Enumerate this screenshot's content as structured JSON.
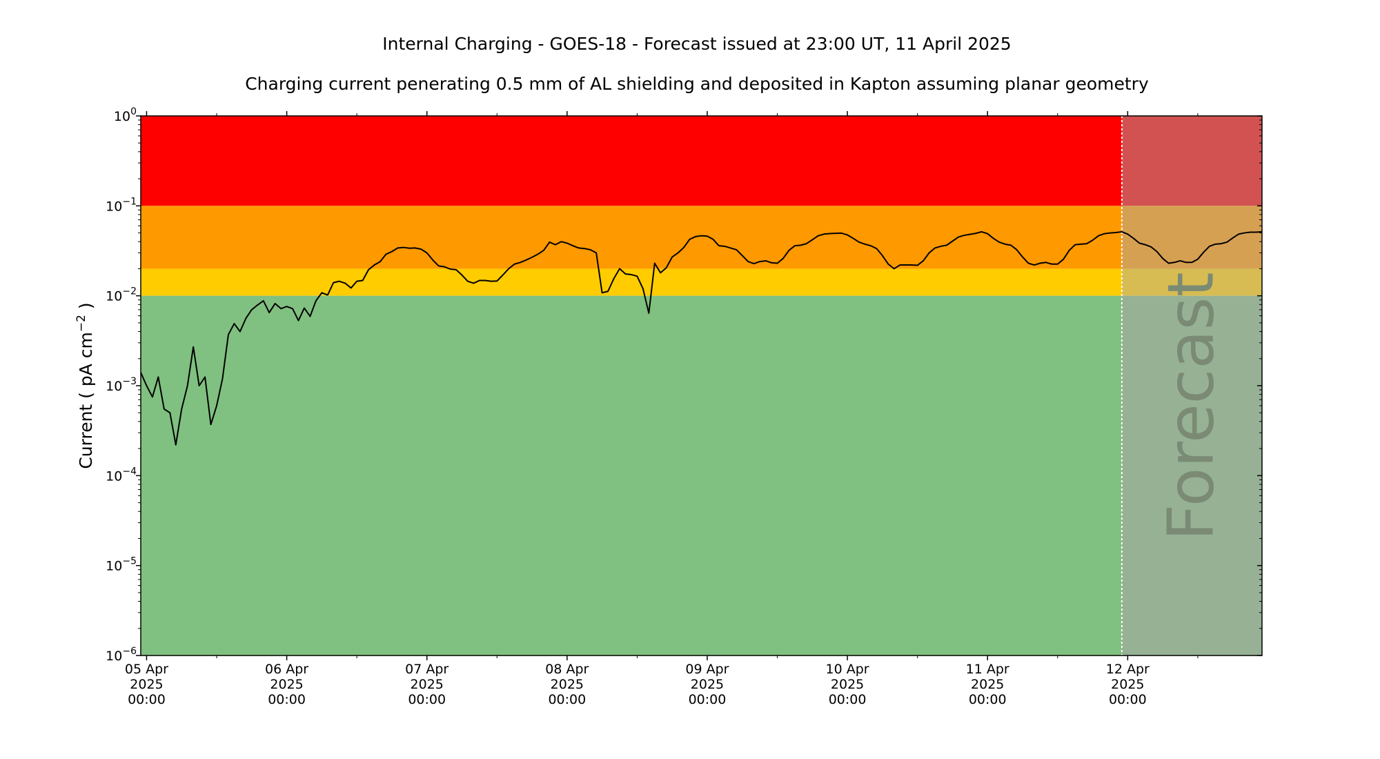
{
  "chart_data": {
    "type": "line",
    "title": "Internal Charging - GOES-18 - Forecast issued at 23:00 UT, 11 April 2025",
    "subtitle": "Charging current penerating 0.5 mm of AL shielding and deposited in Kapton assuming planar geometry",
    "ylabel": {
      "prefix": "Current ( pA cm",
      "exp": "−2",
      "suffix": " )"
    },
    "xlabel": "",
    "yscale": "log",
    "ylim": [
      1e-06,
      1
    ],
    "xlim": [
      "2025-04-04T23:00",
      "2025-04-12T23:00"
    ],
    "y_ticks": [
      {
        "value": 1e-06,
        "base": "10",
        "exp": "−6"
      },
      {
        "value": 1e-05,
        "base": "10",
        "exp": "−5"
      },
      {
        "value": 0.0001,
        "base": "10",
        "exp": "−4"
      },
      {
        "value": 0.001,
        "base": "10",
        "exp": "−3"
      },
      {
        "value": 0.01,
        "base": "10",
        "exp": "−2"
      },
      {
        "value": 0.1,
        "base": "10",
        "exp": "−1"
      },
      {
        "value": 1,
        "base": "10",
        "exp": "0"
      }
    ],
    "x_ticks": [
      {
        "time": "2025-04-05T00:00",
        "lines": [
          "05 Apr",
          "2025",
          "00:00"
        ]
      },
      {
        "time": "2025-04-06T00:00",
        "lines": [
          "06 Apr",
          "2025",
          "00:00"
        ]
      },
      {
        "time": "2025-04-07T00:00",
        "lines": [
          "07 Apr",
          "2025",
          "00:00"
        ]
      },
      {
        "time": "2025-04-08T00:00",
        "lines": [
          "08 Apr",
          "2025",
          "00:00"
        ]
      },
      {
        "time": "2025-04-09T00:00",
        "lines": [
          "09 Apr",
          "2025",
          "00:00"
        ]
      },
      {
        "time": "2025-04-10T00:00",
        "lines": [
          "10 Apr",
          "2025",
          "00:00"
        ]
      },
      {
        "time": "2025-04-11T00:00",
        "lines": [
          "11 Apr",
          "2025",
          "00:00"
        ]
      },
      {
        "time": "2025-04-12T00:00",
        "lines": [
          "12 Apr",
          "2025",
          "00:00"
        ]
      }
    ],
    "x_minor_ticks": [
      "2025-04-05T12:00",
      "2025-04-06T12:00",
      "2025-04-07T12:00",
      "2025-04-08T12:00",
      "2025-04-09T12:00",
      "2025-04-10T12:00",
      "2025-04-11T12:00",
      "2025-04-12T12:00"
    ],
    "bands": [
      {
        "from": 0.1,
        "to": 1,
        "color": "#ff0000",
        "forecast_color": "#d25252"
      },
      {
        "from": 0.02,
        "to": 0.1,
        "color": "#ff9900",
        "forecast_color": "#d6a052"
      },
      {
        "from": 0.01,
        "to": 0.02,
        "color": "#ffcc00",
        "forecast_color": "#d6bc52"
      },
      {
        "from": 1e-06,
        "to": 0.01,
        "color": "#80c080",
        "forecast_color": "#96b194"
      }
    ],
    "forecast": {
      "start": "2025-04-11T23:00",
      "label": "Forecast",
      "line_color": "#ffffff"
    },
    "series": [
      {
        "color": "#000000",
        "points": [
          [
            "2025-04-04T23:00",
            0.0014
          ],
          [
            "2025-04-05T00:00",
            0.001
          ],
          [
            "2025-04-05T01:00",
            0.00075
          ],
          [
            "2025-04-05T02:00",
            0.00125
          ],
          [
            "2025-04-05T03:00",
            0.00055
          ],
          [
            "2025-04-05T04:00",
            0.0005
          ],
          [
            "2025-04-05T05:00",
            0.00022
          ],
          [
            "2025-04-05T06:00",
            0.00055
          ],
          [
            "2025-04-05T07:00",
            0.001
          ],
          [
            "2025-04-05T08:00",
            0.0027
          ],
          [
            "2025-04-05T09:00",
            0.001
          ],
          [
            "2025-04-05T10:00",
            0.00125
          ],
          [
            "2025-04-05T11:00",
            0.00037
          ],
          [
            "2025-04-05T12:00",
            0.0006
          ],
          [
            "2025-04-05T13:00",
            0.0012
          ],
          [
            "2025-04-05T14:00",
            0.0037
          ],
          [
            "2025-04-05T15:00",
            0.0049
          ],
          [
            "2025-04-05T16:00",
            0.004
          ],
          [
            "2025-04-05T17:00",
            0.0056
          ],
          [
            "2025-04-05T18:00",
            0.007
          ],
          [
            "2025-04-05T19:00",
            0.0079
          ],
          [
            "2025-04-05T20:00",
            0.0088
          ],
          [
            "2025-04-05T21:00",
            0.0065
          ],
          [
            "2025-04-05T22:00",
            0.0082
          ],
          [
            "2025-04-05T23:00",
            0.0072
          ],
          [
            "2025-04-06T00:00",
            0.0076
          ],
          [
            "2025-04-06T01:00",
            0.0072
          ],
          [
            "2025-04-06T02:00",
            0.0053
          ],
          [
            "2025-04-06T03:00",
            0.0073
          ],
          [
            "2025-04-06T04:00",
            0.0059
          ],
          [
            "2025-04-06T05:00",
            0.0088
          ],
          [
            "2025-04-06T06:00",
            0.0108
          ],
          [
            "2025-04-06T07:00",
            0.0102
          ],
          [
            "2025-04-06T08:00",
            0.014
          ],
          [
            "2025-04-06T09:00",
            0.0145
          ],
          [
            "2025-04-06T10:00",
            0.0138
          ],
          [
            "2025-04-06T11:00",
            0.0122
          ],
          [
            "2025-04-06T12:00",
            0.0145
          ],
          [
            "2025-04-06T13:00",
            0.0148
          ],
          [
            "2025-04-06T14:00",
            0.0195
          ],
          [
            "2025-04-06T15:00",
            0.022
          ],
          [
            "2025-04-06T16:00",
            0.024
          ],
          [
            "2025-04-06T17:00",
            0.029
          ],
          [
            "2025-04-06T18:00",
            0.031
          ],
          [
            "2025-04-06T19:00",
            0.034
          ],
          [
            "2025-04-06T20:00",
            0.0345
          ],
          [
            "2025-04-06T21:00",
            0.0338
          ],
          [
            "2025-04-06T22:00",
            0.034
          ],
          [
            "2025-04-06T23:00",
            0.033
          ],
          [
            "2025-04-07T00:00",
            0.03
          ],
          [
            "2025-04-07T01:00",
            0.025
          ],
          [
            "2025-04-07T02:00",
            0.0215
          ],
          [
            "2025-04-07T03:00",
            0.021
          ],
          [
            "2025-04-07T04:00",
            0.0198
          ],
          [
            "2025-04-07T05:00",
            0.0195
          ],
          [
            "2025-04-07T06:00",
            0.017
          ],
          [
            "2025-04-07T07:00",
            0.0145
          ],
          [
            "2025-04-07T08:00",
            0.0138
          ],
          [
            "2025-04-07T09:00",
            0.0148
          ],
          [
            "2025-04-07T10:00",
            0.0148
          ],
          [
            "2025-04-07T11:00",
            0.0145
          ],
          [
            "2025-04-07T12:00",
            0.0146
          ],
          [
            "2025-04-07T13:00",
            0.017
          ],
          [
            "2025-04-07T14:00",
            0.02
          ],
          [
            "2025-04-07T15:00",
            0.0225
          ],
          [
            "2025-04-07T16:00",
            0.0235
          ],
          [
            "2025-04-07T17:00",
            0.025
          ],
          [
            "2025-04-07T18:00",
            0.0268
          ],
          [
            "2025-04-07T19:00",
            0.029
          ],
          [
            "2025-04-07T20:00",
            0.032
          ],
          [
            "2025-04-07T21:00",
            0.0395
          ],
          [
            "2025-04-07T22:00",
            0.037
          ],
          [
            "2025-04-07T23:00",
            0.04
          ],
          [
            "2025-04-08T00:00",
            0.0385
          ],
          [
            "2025-04-08T01:00",
            0.036
          ],
          [
            "2025-04-08T02:00",
            0.034
          ],
          [
            "2025-04-08T03:00",
            0.0335
          ],
          [
            "2025-04-08T04:00",
            0.0325
          ],
          [
            "2025-04-08T05:00",
            0.03
          ],
          [
            "2025-04-08T06:00",
            0.0108
          ],
          [
            "2025-04-08T07:00",
            0.0112
          ],
          [
            "2025-04-08T08:00",
            0.0155
          ],
          [
            "2025-04-08T09:00",
            0.02
          ],
          [
            "2025-04-08T10:00",
            0.0175
          ],
          [
            "2025-04-08T11:00",
            0.0172
          ],
          [
            "2025-04-08T12:00",
            0.0165
          ],
          [
            "2025-04-08T13:00",
            0.012
          ],
          [
            "2025-04-08T14:00",
            0.0064
          ],
          [
            "2025-04-08T15:00",
            0.023
          ],
          [
            "2025-04-08T16:00",
            0.018
          ],
          [
            "2025-04-08T17:00",
            0.0205
          ],
          [
            "2025-04-08T18:00",
            0.027
          ],
          [
            "2025-04-08T19:00",
            0.03
          ],
          [
            "2025-04-08T20:00",
            0.0345
          ],
          [
            "2025-04-08T21:00",
            0.0425
          ],
          [
            "2025-04-08T22:00",
            0.0455
          ],
          [
            "2025-04-08T23:00",
            0.0465
          ],
          [
            "2025-04-09T00:00",
            0.046
          ],
          [
            "2025-04-09T01:00",
            0.0425
          ],
          [
            "2025-04-09T02:00",
            0.036
          ],
          [
            "2025-04-09T03:00",
            0.0355
          ],
          [
            "2025-04-09T04:00",
            0.034
          ],
          [
            "2025-04-09T05:00",
            0.0325
          ],
          [
            "2025-04-09T06:00",
            0.028
          ],
          [
            "2025-04-09T07:00",
            0.024
          ],
          [
            "2025-04-09T08:00",
            0.0228
          ],
          [
            "2025-04-09T09:00",
            0.024
          ],
          [
            "2025-04-09T10:00",
            0.0245
          ],
          [
            "2025-04-09T11:00",
            0.0233
          ],
          [
            "2025-04-09T12:00",
            0.023
          ],
          [
            "2025-04-09T13:00",
            0.026
          ],
          [
            "2025-04-09T14:00",
            0.032
          ],
          [
            "2025-04-09T15:00",
            0.036
          ],
          [
            "2025-04-09T16:00",
            0.0365
          ],
          [
            "2025-04-09T17:00",
            0.038
          ],
          [
            "2025-04-09T18:00",
            0.042
          ],
          [
            "2025-04-09T19:00",
            0.0465
          ],
          [
            "2025-04-09T20:00",
            0.0485
          ],
          [
            "2025-04-09T21:00",
            0.0492
          ],
          [
            "2025-04-09T22:00",
            0.0495
          ],
          [
            "2025-04-09T23:00",
            0.0497
          ],
          [
            "2025-04-10T00:00",
            0.0475
          ],
          [
            "2025-04-10T01:00",
            0.0435
          ],
          [
            "2025-04-10T02:00",
            0.0395
          ],
          [
            "2025-04-10T03:00",
            0.0375
          ],
          [
            "2025-04-10T04:00",
            0.036
          ],
          [
            "2025-04-10T05:00",
            0.0335
          ],
          [
            "2025-04-10T06:00",
            0.028
          ],
          [
            "2025-04-10T07:00",
            0.0225
          ],
          [
            "2025-04-10T08:00",
            0.02
          ],
          [
            "2025-04-10T09:00",
            0.022
          ],
          [
            "2025-04-10T10:00",
            0.022
          ],
          [
            "2025-04-10T11:00",
            0.022
          ],
          [
            "2025-04-10T12:00",
            0.0218
          ],
          [
            "2025-04-10T13:00",
            0.0245
          ],
          [
            "2025-04-10T14:00",
            0.03
          ],
          [
            "2025-04-10T15:00",
            0.034
          ],
          [
            "2025-04-10T16:00",
            0.0355
          ],
          [
            "2025-04-10T17:00",
            0.0365
          ],
          [
            "2025-04-10T18:00",
            0.0405
          ],
          [
            "2025-04-10T19:00",
            0.045
          ],
          [
            "2025-04-10T20:00",
            0.047
          ],
          [
            "2025-04-10T21:00",
            0.0482
          ],
          [
            "2025-04-10T22:00",
            0.0495
          ],
          [
            "2025-04-10T23:00",
            0.0515
          ],
          [
            "2025-04-11T00:00",
            0.049
          ],
          [
            "2025-04-11T01:00",
            0.0435
          ],
          [
            "2025-04-11T02:00",
            0.0395
          ],
          [
            "2025-04-11T03:00",
            0.0375
          ],
          [
            "2025-04-11T04:00",
            0.0365
          ],
          [
            "2025-04-11T05:00",
            0.0325
          ],
          [
            "2025-04-11T06:00",
            0.027
          ],
          [
            "2025-04-11T07:00",
            0.023
          ],
          [
            "2025-04-11T08:00",
            0.022
          ],
          [
            "2025-04-11T09:00",
            0.023
          ],
          [
            "2025-04-11T10:00",
            0.0235
          ],
          [
            "2025-04-11T11:00",
            0.0225
          ],
          [
            "2025-04-11T12:00",
            0.0225
          ],
          [
            "2025-04-11T13:00",
            0.0255
          ],
          [
            "2025-04-11T14:00",
            0.032
          ],
          [
            "2025-04-11T15:00",
            0.037
          ],
          [
            "2025-04-11T16:00",
            0.0375
          ],
          [
            "2025-04-11T17:00",
            0.038
          ],
          [
            "2025-04-11T18:00",
            0.0415
          ],
          [
            "2025-04-11T19:00",
            0.0465
          ],
          [
            "2025-04-11T20:00",
            0.049
          ],
          [
            "2025-04-11T21:00",
            0.05
          ],
          [
            "2025-04-11T22:00",
            0.0505
          ],
          [
            "2025-04-11T23:00",
            0.0515
          ],
          [
            "2025-04-12T00:00",
            0.0485
          ],
          [
            "2025-04-12T01:00",
            0.0435
          ],
          [
            "2025-04-12T02:00",
            0.0385
          ],
          [
            "2025-04-12T03:00",
            0.037
          ],
          [
            "2025-04-12T04:00",
            0.035
          ],
          [
            "2025-04-12T05:00",
            0.031
          ],
          [
            "2025-04-12T06:00",
            0.026
          ],
          [
            "2025-04-12T07:00",
            0.023
          ],
          [
            "2025-04-12T08:00",
            0.0235
          ],
          [
            "2025-04-12T09:00",
            0.0245
          ],
          [
            "2025-04-12T10:00",
            0.0235
          ],
          [
            "2025-04-12T11:00",
            0.0235
          ],
          [
            "2025-04-12T12:00",
            0.0255
          ],
          [
            "2025-04-12T13:00",
            0.0305
          ],
          [
            "2025-04-12T14:00",
            0.0355
          ],
          [
            "2025-04-12T15:00",
            0.0375
          ],
          [
            "2025-04-12T16:00",
            0.038
          ],
          [
            "2025-04-12T17:00",
            0.0395
          ],
          [
            "2025-04-12T18:00",
            0.044
          ],
          [
            "2025-04-12T19:00",
            0.0485
          ],
          [
            "2025-04-12T20:00",
            0.05
          ],
          [
            "2025-04-12T21:00",
            0.051
          ],
          [
            "2025-04-12T22:00",
            0.051
          ],
          [
            "2025-04-12T23:00",
            0.0515
          ]
        ]
      }
    ]
  }
}
